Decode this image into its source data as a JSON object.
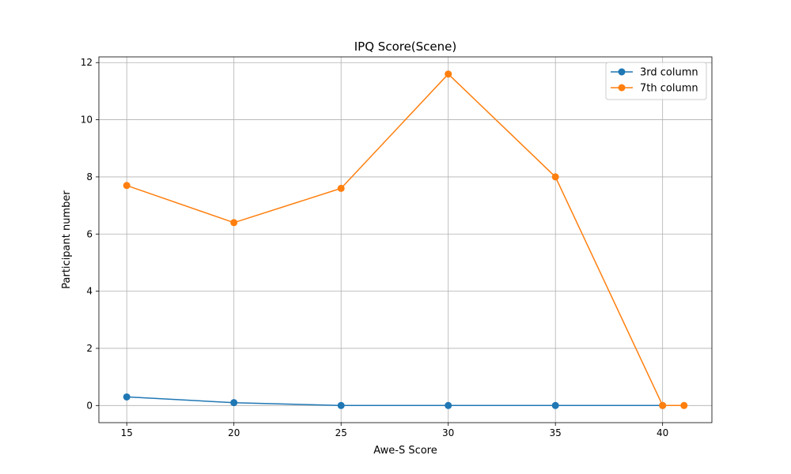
{
  "chart_data": {
    "type": "line",
    "title": "IPQ Score(Scene)",
    "xlabel": "Awe-S Score",
    "ylabel": "Participant number",
    "xlim": [
      13.7,
      42.3
    ],
    "ylim": [
      -0.6,
      12.2
    ],
    "xticks": [
      15,
      20,
      25,
      30,
      35,
      40
    ],
    "yticks": [
      0,
      2,
      4,
      6,
      8,
      10,
      12
    ],
    "grid": true,
    "legend": "top-right",
    "series": [
      {
        "name": "3rd column",
        "color": "#1f77b4",
        "marker": "circle",
        "x": [
          15,
          20,
          25,
          30,
          35,
          40
        ],
        "y": [
          0.3,
          0.1,
          0.0,
          0.0,
          0.0,
          0.0
        ]
      },
      {
        "name": "7th column",
        "color": "#ff7f0e",
        "marker": "circle",
        "x": [
          15,
          20,
          25,
          30,
          35,
          40,
          41
        ],
        "y": [
          7.7,
          6.4,
          7.6,
          11.6,
          8.0,
          0.0,
          0.0
        ]
      }
    ]
  }
}
